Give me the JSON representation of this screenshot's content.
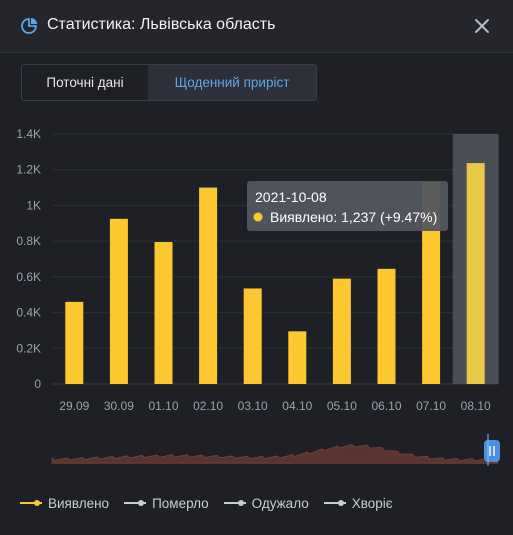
{
  "header": {
    "title": "Статистика: Львівська область"
  },
  "tabs": [
    {
      "label": "Поточні дані",
      "active": false
    },
    {
      "label": "Щоденний приріст",
      "active": true
    }
  ],
  "colors": {
    "background": "#1e2025",
    "bar": "#fdc72f",
    "tab_active_text": "#5aa9e6",
    "range_handle": "#4a90e2",
    "navigator_fill": "#5a3530"
  },
  "chart_data": {
    "type": "bar",
    "categories": [
      "29.09",
      "30.09",
      "01.10",
      "02.10",
      "03.10",
      "04.10",
      "05.10",
      "06.10",
      "07.10",
      "08.10"
    ],
    "series": [
      {
        "name": "Виявлено",
        "values": [
          460,
          925,
          795,
          1100,
          535,
          295,
          590,
          645,
          1130,
          1237
        ]
      }
    ],
    "ylim": [
      0,
      1400
    ],
    "yticks": [
      {
        "value": 0,
        "label": "0"
      },
      {
        "value": 200,
        "label": "0.2K"
      },
      {
        "value": 400,
        "label": "0.4K"
      },
      {
        "value": 600,
        "label": "0.6K"
      },
      {
        "value": 800,
        "label": "0.8K"
      },
      {
        "value": 1000,
        "label": "1K"
      },
      {
        "value": 1200,
        "label": "1.2K"
      },
      {
        "value": 1400,
        "label": "1.4K"
      }
    ],
    "highlighted_category": "08.10",
    "tooltip": {
      "date": "2021-10-08",
      "text": "Виявлено: 1,237 (+9.47%)"
    }
  },
  "legend": [
    {
      "label": "Виявлено",
      "color": "#fdc72f"
    },
    {
      "label": "Померло",
      "color": "#c9ccd2"
    },
    {
      "label": "Одужало",
      "color": "#c9ccd2"
    },
    {
      "label": "Хворіє",
      "color": "#c9ccd2"
    }
  ]
}
